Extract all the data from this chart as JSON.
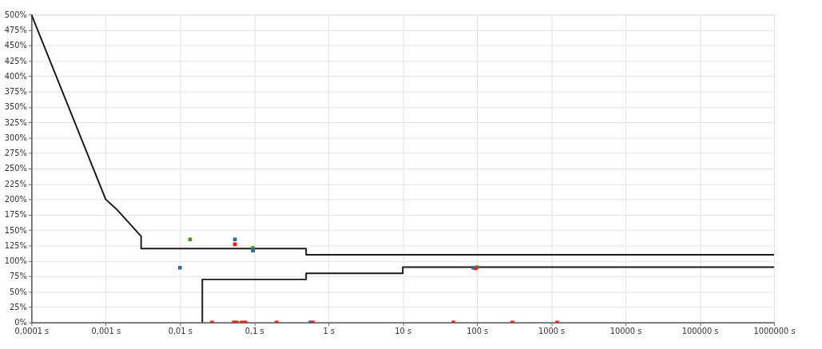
{
  "chart_data": {
    "type": "line",
    "log": "x",
    "grid": true,
    "xlim": [
      0.0001,
      1000000
    ],
    "ylim": [
      0,
      500
    ],
    "xticks": [
      {
        "value": 0.0001,
        "label": "0,0001 s"
      },
      {
        "value": 0.001,
        "label": "0,001 s"
      },
      {
        "value": 0.01,
        "label": "0,01 s"
      },
      {
        "value": 0.1,
        "label": "0,1 s"
      },
      {
        "value": 1,
        "label": "1 s"
      },
      {
        "value": 10,
        "label": "10 s"
      },
      {
        "value": 100,
        "label": "100 s"
      },
      {
        "value": 1000,
        "label": "1000 s"
      },
      {
        "value": 10000,
        "label": "10000 s"
      },
      {
        "value": 100000,
        "label": "100000 s"
      },
      {
        "value": 1000000,
        "label": "1000000 s"
      }
    ],
    "yticks": [
      {
        "value": 0,
        "label": "0%"
      },
      {
        "value": 25,
        "label": "25%"
      },
      {
        "value": 50,
        "label": "50%"
      },
      {
        "value": 75,
        "label": "75%"
      },
      {
        "value": 100,
        "label": "100%"
      },
      {
        "value": 125,
        "label": "125%"
      },
      {
        "value": 150,
        "label": "150%"
      },
      {
        "value": 175,
        "label": "175%"
      },
      {
        "value": 200,
        "label": "200%"
      },
      {
        "value": 225,
        "label": "225%"
      },
      {
        "value": 250,
        "label": "250%"
      },
      {
        "value": 275,
        "label": "275%"
      },
      {
        "value": 300,
        "label": "300%"
      },
      {
        "value": 325,
        "label": "325%"
      },
      {
        "value": 350,
        "label": "350%"
      },
      {
        "value": 375,
        "label": "375%"
      },
      {
        "value": 400,
        "label": "400%"
      },
      {
        "value": 425,
        "label": "425%"
      },
      {
        "value": 450,
        "label": "450%"
      },
      {
        "value": 475,
        "label": "475%"
      },
      {
        "value": 500,
        "label": "500%"
      }
    ],
    "series": [
      {
        "color": "#1a1a1a",
        "line_style": "solid",
        "marker": "none",
        "x": [
          0.0001,
          0.001,
          0.0014,
          0.003,
          0.003,
          0.5,
          0.5,
          1000000
        ],
        "values": [
          500,
          200,
          184,
          140,
          120,
          120,
          110,
          110
        ]
      },
      {
        "color": "#1a1a1a",
        "line_style": "solid",
        "marker": "none",
        "x": [
          0.02,
          0.02,
          0.5,
          0.5,
          10,
          10,
          1000000
        ],
        "values": [
          0,
          70,
          70,
          80,
          80,
          90,
          90
        ]
      },
      {
        "type": "scatter",
        "color": "#3a9a22",
        "marker": "square",
        "x": [
          0.0137,
          0.096,
          100
        ],
        "values": [
          135,
          121,
          90
        ]
      },
      {
        "type": "scatter",
        "color": "#2e64b0",
        "marker": "square",
        "x": [
          0.01,
          0.055,
          0.096,
          0.57,
          89
        ],
        "values": [
          89,
          135,
          117,
          0,
          89
        ]
      },
      {
        "type": "scatter",
        "color": "#ff1414",
        "marker": "square",
        "x": [
          0.055,
          0.027,
          0.053,
          0.058,
          0.068,
          0.076,
          0.2,
          0.62,
          48,
          300,
          1200,
          96
        ],
        "values": [
          127,
          0,
          0,
          0,
          0,
          0,
          0,
          0,
          0,
          0,
          0,
          88
        ]
      }
    ]
  }
}
